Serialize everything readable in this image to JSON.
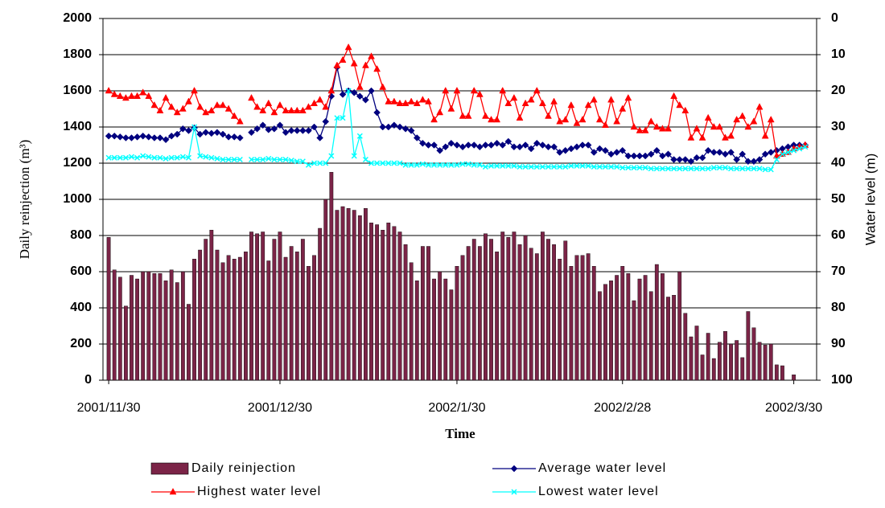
{
  "chart_data": {
    "type": "combo",
    "x_label": "Time",
    "y_label": "Daily reinjection (m³)",
    "y2_label": "Water level (m)",
    "x": [
      "2001-11-30",
      "2001-12-01",
      "2001-12-02",
      "2001-12-03",
      "2001-12-04",
      "2001-12-05",
      "2001-12-06",
      "2001-12-07",
      "2001-12-08",
      "2001-12-09",
      "2001-12-10",
      "2001-12-11",
      "2001-12-12",
      "2001-12-13",
      "2001-12-14",
      "2001-12-15",
      "2001-12-16",
      "2001-12-17",
      "2001-12-18",
      "2001-12-19",
      "2001-12-20",
      "2001-12-21",
      "2001-12-22",
      "2001-12-23",
      "2001-12-24",
      "2001-12-25",
      "2001-12-26",
      "2001-12-27",
      "2001-12-28",
      "2001-12-29",
      "2001-12-30",
      "2001-12-31",
      "2002-01-01",
      "2002-01-02",
      "2002-01-03",
      "2002-01-04",
      "2002-01-05",
      "2002-01-06",
      "2002-01-07",
      "2002-01-08",
      "2002-01-09",
      "2002-01-10",
      "2002-01-11",
      "2002-01-12",
      "2002-01-13",
      "2002-01-14",
      "2002-01-15",
      "2002-01-16",
      "2002-01-17",
      "2002-01-18",
      "2002-01-19",
      "2002-01-20",
      "2002-01-21",
      "2002-01-22",
      "2002-01-23",
      "2002-01-24",
      "2002-01-25",
      "2002-01-26",
      "2002-01-27",
      "2002-01-28",
      "2002-01-29",
      "2002-01-30",
      "2002-01-31",
      "2002-02-01",
      "2002-02-02",
      "2002-02-03",
      "2002-02-04",
      "2002-02-05",
      "2002-02-06",
      "2002-02-07",
      "2002-02-08",
      "2002-02-09",
      "2002-02-10",
      "2002-02-11",
      "2002-02-12",
      "2002-02-13",
      "2002-02-14",
      "2002-02-15",
      "2002-02-16",
      "2002-02-17",
      "2002-02-18",
      "2002-02-19",
      "2002-02-20",
      "2002-02-21",
      "2002-02-22",
      "2002-02-23",
      "2002-02-24",
      "2002-02-25",
      "2002-02-26",
      "2002-02-27",
      "2002-02-28",
      "2002-03-01",
      "2002-03-02",
      "2002-03-03",
      "2002-03-04",
      "2002-03-05",
      "2002-03-06",
      "2002-03-07",
      "2002-03-08",
      "2002-03-09",
      "2002-03-10",
      "2002-03-11",
      "2002-03-12",
      "2002-03-13",
      "2002-03-14",
      "2002-03-15",
      "2002-03-16",
      "2002-03-17",
      "2002-03-18",
      "2002-03-19",
      "2002-03-20",
      "2002-03-21",
      "2002-03-22",
      "2002-03-23",
      "2002-03-24",
      "2002-03-25",
      "2002-03-26",
      "2002-03-27",
      "2002-03-28",
      "2002-03-29",
      "2002-03-30",
      "2002-03-31",
      "2002-04-01"
    ],
    "xlim": [
      "2001-11-29",
      "2002-04-03"
    ],
    "xticks": [
      {
        "value": "2001-11-30",
        "label": "2001/11/30"
      },
      {
        "value": "2001-12-30",
        "label": "2001/12/30"
      },
      {
        "value": "2002-01-30",
        "label": "2002/1/30"
      },
      {
        "value": "2002-02-28",
        "label": "2002/2/28"
      },
      {
        "value": "2002-03-30",
        "label": "2002/3/30"
      }
    ],
    "ylim": [
      0,
      2000
    ],
    "yticks": [
      0,
      200,
      400,
      600,
      800,
      1000,
      1200,
      1400,
      1600,
      1800,
      2000
    ],
    "y2lim": [
      100,
      0
    ],
    "y2ticks": [
      0,
      10,
      20,
      30,
      40,
      50,
      60,
      70,
      80,
      90,
      100
    ],
    "grid": true,
    "series": [
      {
        "name": "Daily reinjection",
        "type": "bar",
        "color": "#7b2447",
        "values": [
          790,
          610,
          570,
          410,
          580,
          560,
          600,
          600,
          590,
          590,
          550,
          610,
          540,
          600,
          420,
          670,
          720,
          780,
          830,
          720,
          650,
          690,
          670,
          680,
          710,
          820,
          810,
          820,
          660,
          780,
          820,
          680,
          740,
          710,
          780,
          630,
          690,
          840,
          1000,
          1150,
          940,
          960,
          950,
          940,
          910,
          950,
          870,
          860,
          830,
          870,
          850,
          820,
          750,
          650,
          550,
          740,
          740,
          560,
          600,
          560,
          500,
          630,
          690,
          740,
          780,
          740,
          810,
          780,
          710,
          820,
          790,
          820,
          750,
          800,
          730,
          700,
          820,
          780,
          750,
          670,
          770,
          630,
          690,
          690,
          700,
          630,
          490,
          530,
          550,
          580,
          630,
          590,
          440,
          560,
          580,
          490,
          640,
          590,
          460,
          470,
          600,
          370,
          240,
          300,
          140,
          260,
          120,
          210,
          270,
          200,
          220,
          125,
          380,
          290,
          210,
          195,
          200,
          85,
          80,
          null,
          30,
          null,
          null
        ]
      },
      {
        "name": "Average water level",
        "type": "line",
        "axis": "y2",
        "color": "#00007f",
        "marker": "diamond",
        "values": [
          32.5,
          32.5,
          32.75,
          33,
          33,
          32.75,
          32.5,
          32.75,
          33,
          33,
          33.5,
          32.5,
          32,
          30.5,
          31,
          30.25,
          32,
          31.5,
          31.75,
          31.5,
          32,
          32.75,
          32.75,
          33,
          null,
          31.5,
          30.5,
          29.5,
          30.75,
          30.5,
          29.5,
          31.5,
          31,
          31,
          31,
          31,
          30,
          33,
          28.5,
          21.5,
          13.5,
          21,
          20,
          20.5,
          21.5,
          22.5,
          20,
          26,
          30,
          30,
          29.5,
          30,
          30.5,
          31,
          33,
          34.5,
          35,
          35,
          36.5,
          35.5,
          34.5,
          35,
          35.5,
          35,
          35,
          35.5,
          35,
          35,
          34.5,
          35,
          34,
          35.5,
          35.5,
          35,
          36,
          34.5,
          35,
          35.5,
          35.5,
          37,
          36.5,
          36,
          35.5,
          35,
          35,
          37,
          36,
          36.5,
          37.5,
          37,
          36.5,
          38,
          38,
          38,
          38,
          37.5,
          36.5,
          38,
          37.5,
          39,
          39,
          39,
          39.5,
          38.5,
          38.5,
          36.5,
          37,
          37,
          37.5,
          37,
          39,
          37.5,
          39.5,
          39.5,
          39,
          37.5,
          37,
          36.5,
          36,
          35.5,
          35,
          35,
          35
        ]
      },
      {
        "name": "Highest water level",
        "type": "line",
        "axis": "y2",
        "color": "#ff0000",
        "marker": "triangle",
        "values": [
          20,
          21,
          21.5,
          22,
          21.5,
          21.5,
          20.5,
          21.5,
          24,
          25.5,
          22,
          24.5,
          26,
          25,
          23,
          20,
          24.5,
          26,
          25.5,
          24,
          24,
          25,
          27,
          28.5,
          null,
          22,
          24.5,
          25.5,
          23.5,
          26,
          24,
          25.5,
          25.5,
          25.5,
          25.5,
          24.5,
          23.5,
          22.5,
          24.5,
          20,
          13,
          11.5,
          8,
          12.5,
          19,
          13,
          10.5,
          14,
          19,
          23,
          23,
          23.5,
          23.5,
          23,
          23.5,
          22.5,
          23,
          28,
          26,
          20,
          25,
          20,
          27,
          27,
          20,
          21,
          27,
          28,
          28,
          20,
          23.5,
          22,
          27.5,
          23.5,
          22.5,
          20,
          23.5,
          27,
          23,
          28.5,
          28,
          24,
          29,
          28,
          24,
          22.5,
          28,
          29.5,
          22.5,
          28.5,
          25,
          22,
          30,
          31,
          31,
          28.5,
          30,
          30.5,
          30.5,
          21.5,
          24,
          25.5,
          33,
          30.5,
          33,
          27.5,
          30,
          30,
          33,
          32.5,
          28,
          27,
          30,
          28.5,
          24.5,
          32.5,
          28,
          38,
          37.5,
          37,
          36,
          35.5,
          35
        ]
      },
      {
        "name": "Lowest water level",
        "type": "line",
        "axis": "y2",
        "color": "#00ffff",
        "marker": "x",
        "values": [
          38.5,
          38.5,
          38.5,
          38.5,
          38.25,
          38.5,
          38,
          38.25,
          38.5,
          38.5,
          38.75,
          38.5,
          38.5,
          38.25,
          38.5,
          30,
          38,
          38.25,
          38.5,
          38.75,
          39,
          39,
          39,
          39,
          null,
          39,
          39,
          39,
          38.75,
          39,
          39,
          39,
          39.25,
          39.5,
          39.5,
          40.5,
          40,
          40,
          40,
          38,
          27.5,
          27.5,
          20,
          38,
          32.5,
          39,
          40,
          40,
          40,
          40,
          40,
          40,
          40.5,
          40.5,
          40.5,
          40.25,
          40.5,
          40.5,
          40.5,
          40.5,
          40.5,
          40.5,
          40.25,
          40.25,
          40.5,
          40.5,
          41,
          40.75,
          40.75,
          40.75,
          40.75,
          40.75,
          41,
          41,
          41,
          41,
          41,
          41,
          41,
          41,
          41,
          40.75,
          40.75,
          40.75,
          40.75,
          41,
          41,
          41,
          41,
          41,
          41.25,
          41.25,
          41.25,
          41.25,
          41.25,
          41.5,
          41.5,
          41.5,
          41.5,
          41.5,
          41.5,
          41.5,
          41.5,
          41.5,
          41.5,
          41.5,
          41.25,
          41.25,
          41.25,
          41.5,
          41.5,
          41.5,
          41.5,
          41.5,
          41.5,
          41.75,
          41.75,
          39,
          37.5,
          37,
          36.5,
          36,
          35.5
        ]
      }
    ]
  }
}
